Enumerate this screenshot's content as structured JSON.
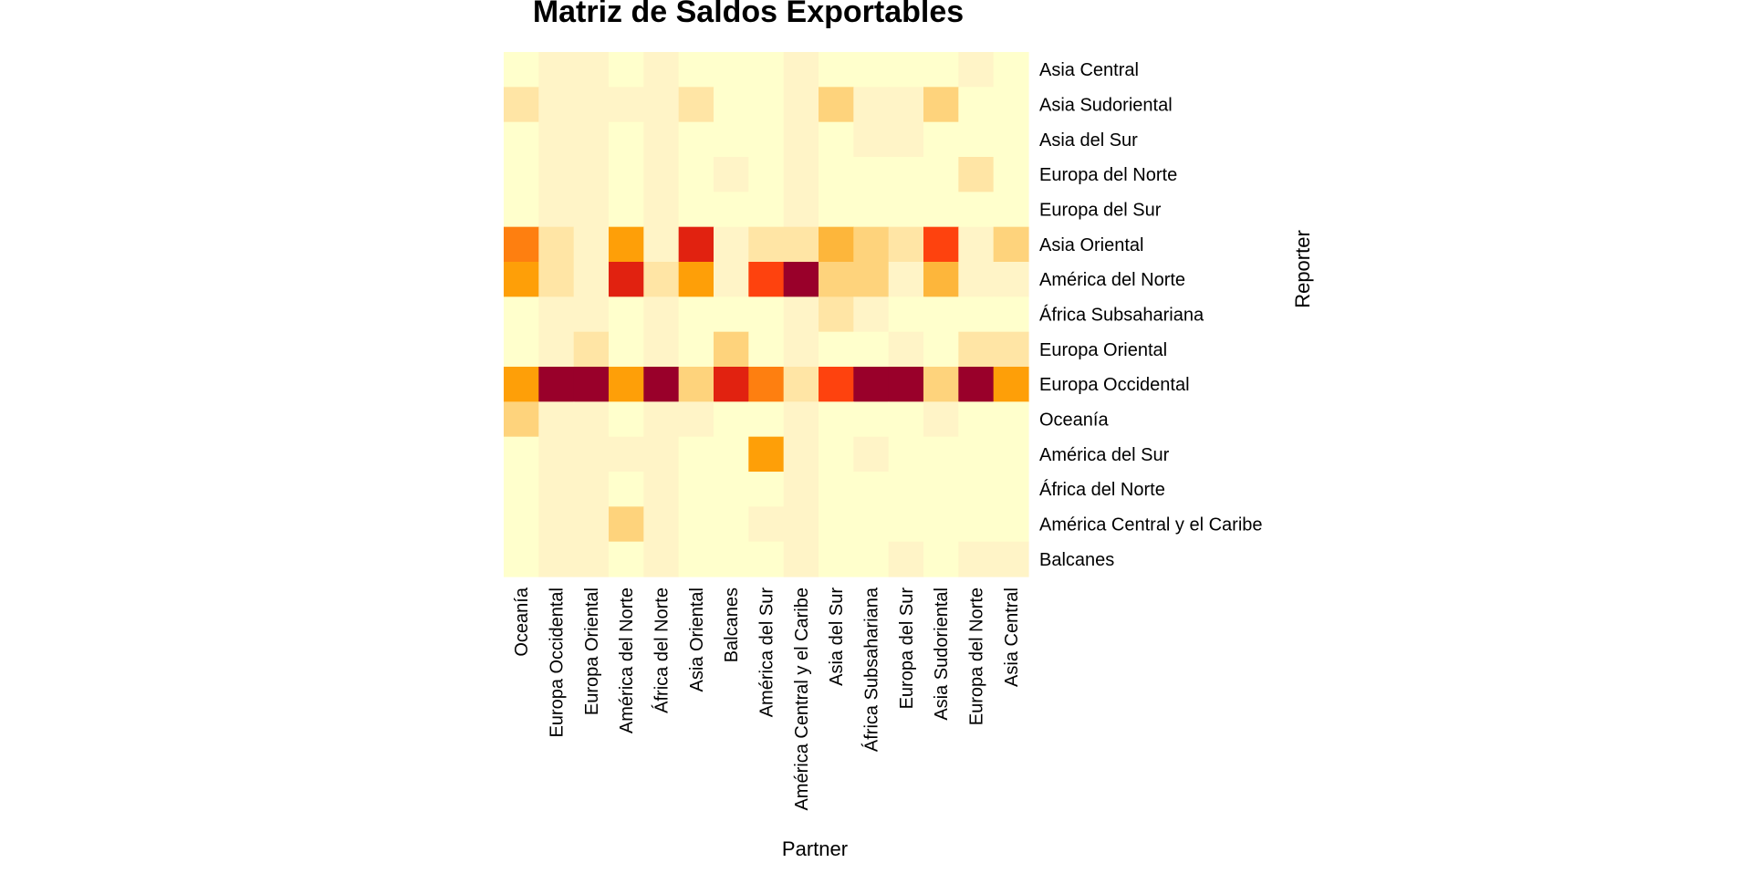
{
  "chart_data": {
    "type": "heatmap",
    "title": "Matriz de Saldos Exportables",
    "xlabel": "Partner",
    "ylabel": "Reporter",
    "x_categories": [
      "Oceanía",
      "Europa Occidental",
      "Europa Oriental",
      "América del Norte",
      "África del Norte",
      "Asia Oriental",
      "Balcanes",
      "América del Sur",
      "América Central y el Caribe",
      "Asia del Sur",
      "África Subsahariana",
      "Europa del Sur",
      "Asia Sudoriental",
      "Europa del Norte",
      "Asia Central"
    ],
    "y_categories": [
      "Asia Central",
      "Asia Sudoriental",
      "Asia del Sur",
      "Europa del Norte",
      "Europa del Sur",
      "Asia Oriental",
      "América del Norte",
      "África Subsahariana",
      "Europa Oriental",
      "Europa Occidental",
      "Oceanía",
      "América del Sur",
      "África del Norte",
      "América Central y el Caribe",
      "Balcanes"
    ],
    "value_scale": "relative intensity (0 = lightest, 9 = darkest); original chart prints no numeric scale",
    "values": [
      [
        0,
        1,
        1,
        0,
        1,
        0,
        0,
        0,
        1,
        0,
        0,
        0,
        0,
        1,
        0
      ],
      [
        2,
        1,
        1,
        1,
        1,
        2,
        0,
        0,
        1,
        3,
        1,
        1,
        3,
        0,
        0
      ],
      [
        0,
        1,
        1,
        0,
        1,
        0,
        0,
        0,
        1,
        0,
        1,
        1,
        0,
        0,
        0
      ],
      [
        0,
        1,
        1,
        0,
        1,
        0,
        1,
        0,
        1,
        0,
        0,
        0,
        0,
        2,
        0
      ],
      [
        0,
        1,
        1,
        0,
        1,
        0,
        0,
        0,
        1,
        0,
        0,
        0,
        0,
        0,
        0
      ],
      [
        6,
        2,
        1,
        5,
        1,
        8,
        1,
        2,
        2,
        4,
        3,
        2,
        7,
        1,
        3
      ],
      [
        5,
        2,
        1,
        8,
        2,
        5,
        1,
        7,
        9,
        3,
        3,
        1,
        4,
        1,
        1
      ],
      [
        0,
        1,
        1,
        0,
        1,
        0,
        0,
        0,
        1,
        2,
        1,
        0,
        0,
        0,
        0
      ],
      [
        0,
        1,
        2,
        0,
        1,
        0,
        3,
        0,
        1,
        0,
        0,
        1,
        0,
        2,
        2
      ],
      [
        5,
        9,
        9,
        5,
        9,
        3,
        8,
        6,
        2,
        7,
        9,
        9,
        3,
        9,
        5
      ],
      [
        3,
        1,
        1,
        0,
        1,
        1,
        0,
        0,
        1,
        0,
        0,
        0,
        1,
        0,
        0
      ],
      [
        0,
        1,
        1,
        1,
        1,
        0,
        0,
        5,
        1,
        0,
        1,
        0,
        0,
        0,
        0
      ],
      [
        0,
        1,
        1,
        0,
        1,
        0,
        0,
        0,
        1,
        0,
        0,
        0,
        0,
        0,
        0
      ],
      [
        0,
        1,
        1,
        3,
        1,
        0,
        0,
        1,
        1,
        0,
        0,
        0,
        0,
        0,
        0
      ],
      [
        0,
        1,
        1,
        0,
        1,
        0,
        0,
        0,
        1,
        0,
        0,
        1,
        0,
        1,
        1
      ]
    ],
    "palette": [
      "#ffffcc",
      "#fff4c7",
      "#ffe5a5",
      "#fed37c",
      "#fdb63b",
      "#fe9f08",
      "#fe7f10",
      "#fe420e",
      "#e12210",
      "#99002a"
    ],
    "legend": "none"
  }
}
